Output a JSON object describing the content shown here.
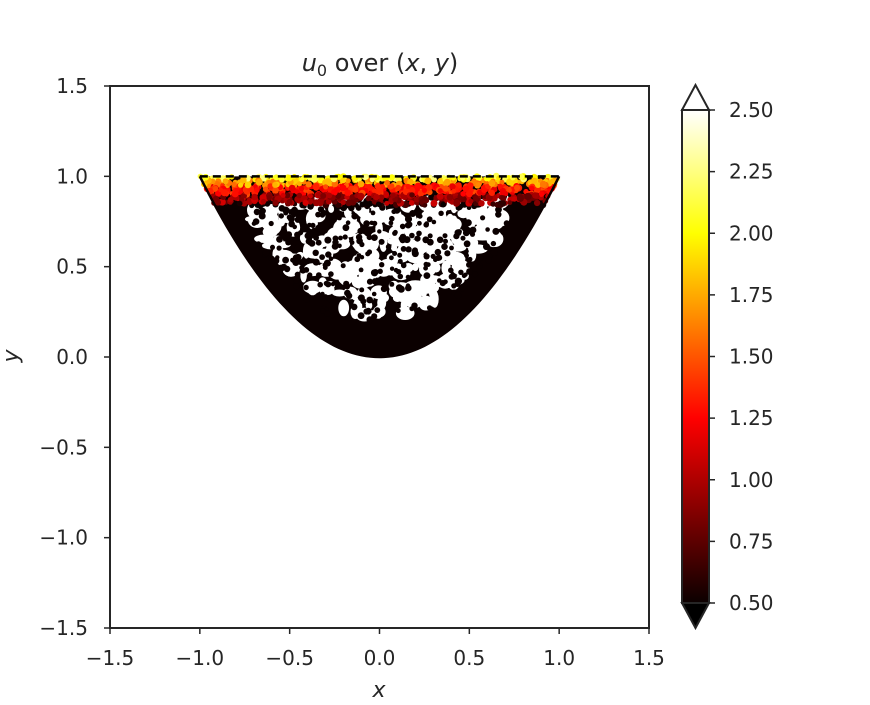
{
  "chart_data": {
    "type": "scatter",
    "title": {
      "pre": "u",
      "sub": "0",
      "post": " over (",
      "x": "x",
      "comma": ", ",
      "y": "y",
      "close": ")"
    },
    "xlabel": "x",
    "ylabel": "y",
    "xlim": [
      -1.5,
      1.5
    ],
    "ylim": [
      -1.5,
      1.5
    ],
    "xticks": [
      -1.5,
      -1.0,
      -0.5,
      0.0,
      0.5,
      1.0,
      1.5
    ],
    "yticks": [
      -1.5,
      -1.0,
      -0.5,
      0.0,
      0.5,
      1.0,
      1.5
    ],
    "xtick_labels": [
      "−1.5",
      "−1.0",
      "−0.5",
      "0.0",
      "0.5",
      "1.0",
      "1.5"
    ],
    "ytick_labels": [
      "−1.5",
      "−1.0",
      "−0.5",
      "0.0",
      "0.5",
      "1.0",
      "1.5"
    ],
    "grid": false,
    "region": {
      "lower_boundary": "y = x^2",
      "upper_boundary": "y = 1",
      "x_range": [
        -1.0,
        1.0
      ],
      "upper_boundary_style": "dashed"
    },
    "colormap": "hot",
    "colorbar": {
      "range": [
        0.5,
        2.5
      ],
      "extend": "both",
      "ticks": [
        0.5,
        0.75,
        1.0,
        1.25,
        1.5,
        1.75,
        2.0,
        2.25,
        2.5
      ],
      "tick_labels": [
        "0.50",
        "0.75",
        "1.00",
        "1.25",
        "1.50",
        "1.75",
        "2.00",
        "2.25",
        "2.50"
      ],
      "placement": "right"
    },
    "value_profile": {
      "bands": [
        {
          "y_min": 0.0,
          "y_max": 0.85,
          "value": 0.5
        },
        {
          "y_min": 0.85,
          "y_max": 0.9,
          "value": 0.9
        },
        {
          "y_min": 0.9,
          "y_max": 0.95,
          "value": 1.3
        },
        {
          "y_min": 0.95,
          "y_max": 0.98,
          "value": 1.7
        },
        {
          "y_min": 0.98,
          "y_max": 1.0,
          "value": 2.1
        }
      ]
    }
  }
}
